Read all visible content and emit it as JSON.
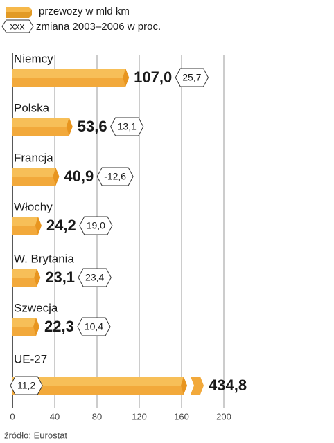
{
  "chart_data": {
    "type": "bar",
    "orientation": "horizontal",
    "legend": [
      "przewozy w mld km",
      "zmiana 2003–2006 w proc."
    ],
    "legend_symbol": "xxx",
    "source": "źródło: Eurostat",
    "categories": [
      "Niemcy",
      "Polska",
      "Francja",
      "Włochy",
      "W. Brytania",
      "Szwecja",
      "UE-27"
    ],
    "values": [
      107.0,
      53.6,
      40.9,
      24.2,
      23.1,
      22.3,
      434.8
    ],
    "value_labels": [
      "107,0",
      "53,6",
      "40,9",
      "24,2",
      "23,1",
      "22,3",
      "434,8"
    ],
    "changes": [
      25.7,
      13.1,
      -12.6,
      19.0,
      23.4,
      10.4,
      11.2
    ],
    "change_labels": [
      "25,7",
      "13,1",
      "-12,6",
      "19,0",
      "23,4",
      "10,4",
      "11,2"
    ],
    "color": "#f2a93b",
    "xlim": [
      0,
      200
    ],
    "xticks": [
      0,
      40,
      80,
      120,
      160,
      200
    ],
    "grid": true
  }
}
